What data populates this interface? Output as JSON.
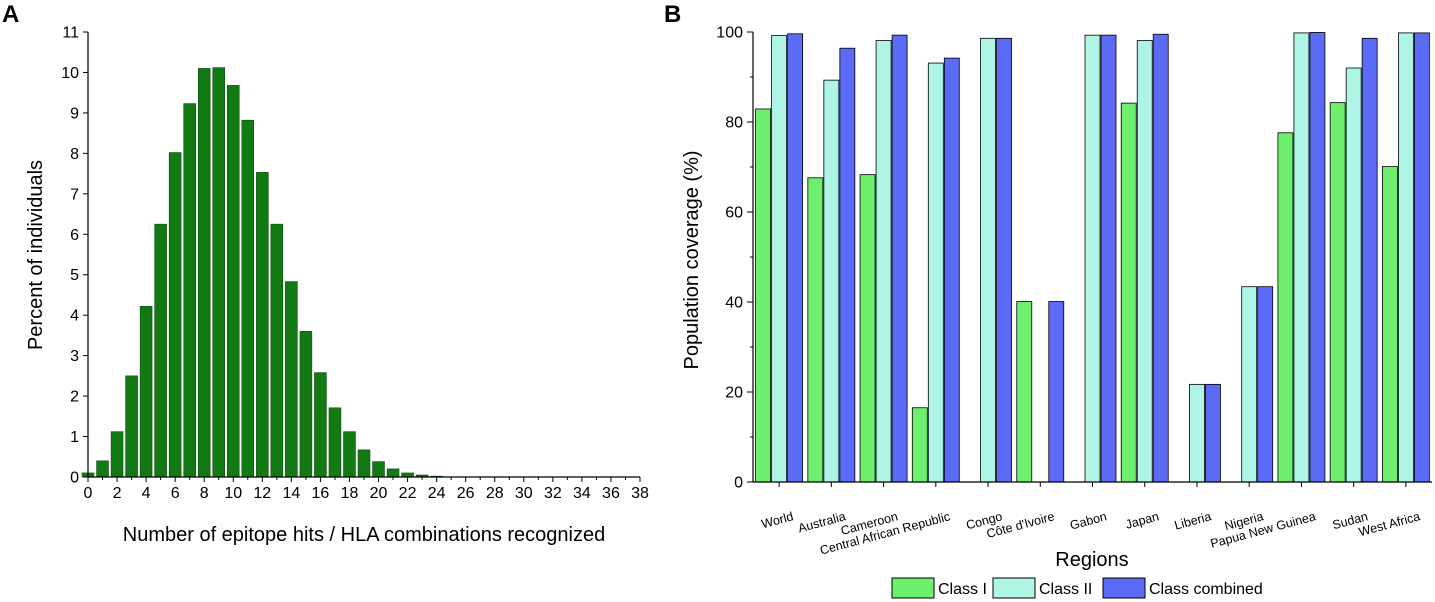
{
  "chart_data": [
    {
      "panel": "A",
      "type": "bar",
      "title": "",
      "xlabel": "Number of epitope hits / HLA combinations recognized",
      "ylabel": "Percent of individuals",
      "xlim": [
        0,
        38
      ],
      "ylim": [
        0,
        11
      ],
      "xticks": [
        "0",
        "2",
        "4",
        "6",
        "8",
        "10",
        "12",
        "14",
        "16",
        "18",
        "20",
        "22",
        "24",
        "26",
        "28",
        "30",
        "32",
        "34",
        "36",
        "38"
      ],
      "yticks": [
        "0",
        "1",
        "2",
        "3",
        "4",
        "5",
        "6",
        "7",
        "8",
        "9",
        "10",
        "11"
      ],
      "x": [
        0,
        1,
        2,
        3,
        4,
        5,
        6,
        7,
        8,
        9,
        10,
        11,
        12,
        13,
        14,
        15,
        16,
        17,
        18,
        19,
        20,
        21,
        22,
        23,
        24
      ],
      "values": [
        0.1,
        0.4,
        1.12,
        2.5,
        4.22,
        6.25,
        8.02,
        9.23,
        10.1,
        10.12,
        9.68,
        8.82,
        7.53,
        6.25,
        4.83,
        3.6,
        2.58,
        1.71,
        1.12,
        0.67,
        0.38,
        0.2,
        0.1,
        0.05,
        0.02
      ],
      "bar_color": "#127a12"
    },
    {
      "panel": "B",
      "type": "bar",
      "title": "",
      "xlabel": "Regions",
      "ylabel": "Population coverage (%)",
      "ylim": [
        0,
        100
      ],
      "yticks": [
        "0",
        "20",
        "40",
        "60",
        "80",
        "100"
      ],
      "categories": [
        "World",
        "Australia",
        "Cameroon",
        "Central African Republic",
        "Congo",
        "Côte d'Ivoire",
        "Gabon",
        "Japan",
        "Liberia",
        "Nigeria",
        "Papua New Guinea",
        "Sudan",
        "West Africa"
      ],
      "series": [
        {
          "name": "Class I",
          "color": "#6ef06e",
          "values": [
            82.9,
            67.6,
            68.3,
            16.5,
            0,
            40.1,
            0,
            84.2,
            0,
            0,
            77.6,
            84.3,
            70.1
          ]
        },
        {
          "name": "Class II",
          "color": "#aef5e6",
          "values": [
            99.2,
            89.3,
            98.1,
            93.1,
            98.6,
            0,
            99.3,
            98.1,
            21.7,
            43.4,
            99.8,
            92.0,
            99.8
          ]
        },
        {
          "name": "Class combined",
          "color": "#5b6bf6",
          "values": [
            99.6,
            96.4,
            99.3,
            94.2,
            98.6,
            40.1,
            99.3,
            99.5,
            21.7,
            43.4,
            99.9,
            98.6,
            99.8
          ]
        }
      ],
      "legend_position": "bottom"
    }
  ]
}
